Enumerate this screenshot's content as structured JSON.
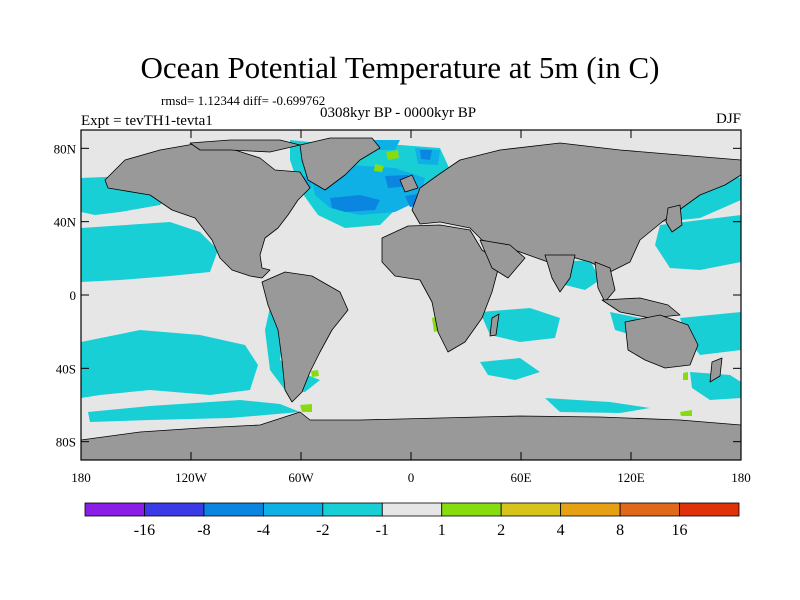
{
  "title": "Ocean Potential Temperature at 5m (in C)",
  "stats": "rmsd= 1.12344 diff= -0.699762",
  "period": "0308kyr BP - 0000kyr BP",
  "experiment": "Expt = tevTH1-tevta1",
  "season": "DJF",
  "map": {
    "projection": "cylindrical-equidistant",
    "lon_range": [
      -180,
      180
    ],
    "lat_range": [
      -90,
      90
    ],
    "lon_ticks": [
      {
        "value": -180,
        "label": "180"
      },
      {
        "value": -120,
        "label": "120W"
      },
      {
        "value": -60,
        "label": "60W"
      },
      {
        "value": 0,
        "label": "0"
      },
      {
        "value": 60,
        "label": "60E"
      },
      {
        "value": 120,
        "label": "120E"
      },
      {
        "value": 180,
        "label": "180"
      }
    ],
    "lat_ticks": [
      {
        "value": 80,
        "label": "80N"
      },
      {
        "value": 40,
        "label": "40N"
      },
      {
        "value": 0,
        "label": "0"
      },
      {
        "value": -40,
        "label": "40S"
      },
      {
        "value": -80,
        "label": "80S"
      }
    ],
    "colors": {
      "ocean_neutral": "#e6e6e6",
      "land": "#999999",
      "cool_light": "#19cfd6",
      "cool_mid": "#0fb0e6",
      "cool_strong": "#0a86e0",
      "warm_light": "#86dc0f"
    }
  },
  "colorbar": {
    "colors": [
      "#8a1ee6",
      "#3a3ae6",
      "#0a86e0",
      "#0fb0e6",
      "#19cfd6",
      "#e6e6e6",
      "#86dc0f",
      "#d6c41a",
      "#e6a014",
      "#e0681a",
      "#e0320a"
    ],
    "labels": [
      "-16",
      "-8",
      "-4",
      "-2",
      "-1",
      "1",
      "2",
      "4",
      "8",
      "16"
    ]
  }
}
